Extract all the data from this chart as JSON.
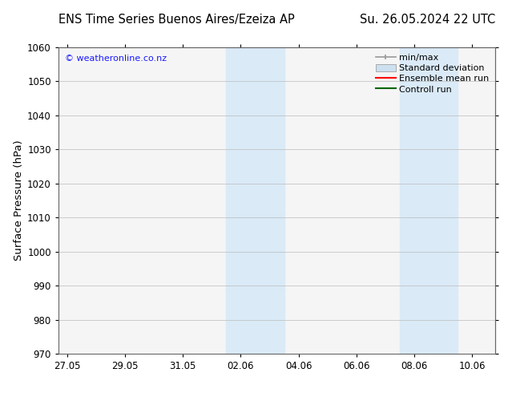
{
  "title_left": "ENS Time Series Buenos Aires/Ezeiza AP",
  "title_right": "Su. 26.05.2024 22 UTC",
  "ylabel": "Surface Pressure (hPa)",
  "ylim": [
    970,
    1060
  ],
  "yticks": [
    970,
    980,
    990,
    1000,
    1010,
    1020,
    1030,
    1040,
    1050,
    1060
  ],
  "xtick_labels": [
    "27.05",
    "29.05",
    "31.05",
    "02.06",
    "04.06",
    "06.06",
    "08.06",
    "10.06"
  ],
  "xtick_positions": [
    0,
    2,
    4,
    6,
    8,
    10,
    12,
    14
  ],
  "xlim": [
    -0.3,
    14.8
  ],
  "shaded_bands": [
    {
      "x_start": 5.5,
      "x_end": 7.5,
      "color": "#daeaf7"
    },
    {
      "x_start": 11.5,
      "x_end": 12.5,
      "color": "#daeaf7"
    },
    {
      "x_start": 12.5,
      "x_end": 13.5,
      "color": "#daeaf7"
    }
  ],
  "watermark": "© weatheronline.co.nz",
  "watermark_color": "#1a1aff",
  "background_color": "#ffffff",
  "plot_bg_color": "#f5f5f5",
  "grid_color": "#bbbbbb",
  "title_fontsize": 10.5,
  "tick_fontsize": 8.5,
  "ylabel_fontsize": 9.5,
  "legend_fontsize": 8.0
}
